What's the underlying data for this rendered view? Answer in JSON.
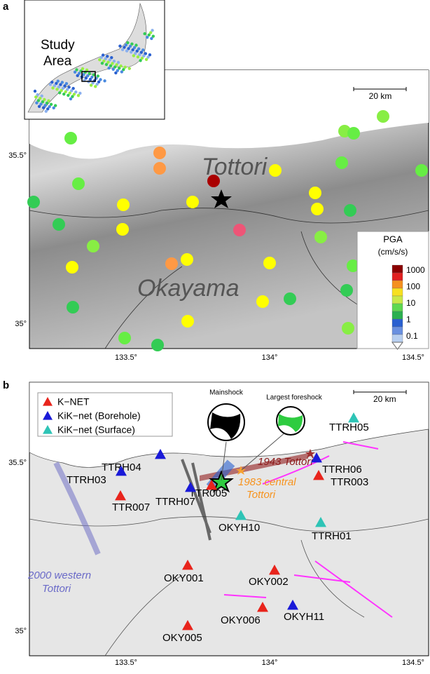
{
  "panel_a": {
    "label": "a",
    "inset_label": [
      "Study",
      "Area"
    ],
    "scale_bar": "20 km",
    "regions": [
      "Tottori",
      "Okayama"
    ],
    "colorbar": {
      "title": "PGA",
      "unit": "(cm/s/s)",
      "ticks": [
        "1000",
        "100",
        "10",
        "1",
        "0.1"
      ]
    },
    "yticks": [
      "35.5°",
      "35°"
    ],
    "xticks": [
      "133.5°",
      "134°",
      "134.5°"
    ]
  },
  "panel_b": {
    "label": "b",
    "legend": [
      {
        "name": "K−NET",
        "color": "#e8241c",
        "stations": [
          "TTR005",
          "TTR003",
          "TTR007",
          "OKY001",
          "OKY002",
          "OKY006",
          "OKY005"
        ]
      },
      {
        "name": "KiK−net (Borehole)",
        "color": "#1a1ad8",
        "stations": [
          "TTRH04",
          "TTRH07",
          "TTRH03",
          "TTRH06",
          "OKYH11"
        ]
      },
      {
        "name": "KiK−net (Surface)",
        "color": "#2ec4b6",
        "stations": [
          "TTRH05",
          "OKYH10",
          "TTRH01"
        ]
      }
    ],
    "mechanisms": [
      "Mainshock",
      "Largest foreshock"
    ],
    "scale_bar": "20 km",
    "events": [
      "1943 Tottori",
      "1983 central",
      "Tottori",
      "2000 western",
      "Tottori"
    ],
    "yticks": [
      "35.5°",
      "35°"
    ],
    "xticks": [
      "133.5°",
      "134°",
      "134.5°"
    ]
  }
}
